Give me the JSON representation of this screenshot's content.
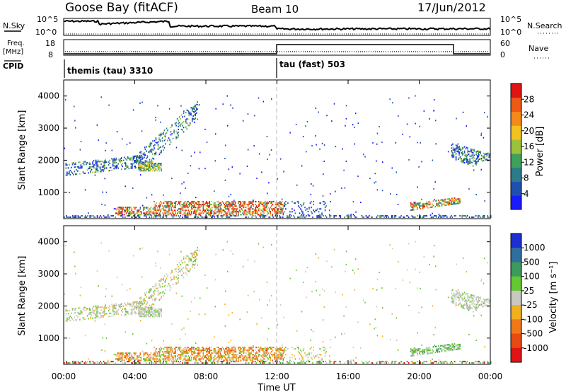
{
  "header": {
    "station": "Goose Bay (fitACF)",
    "beam": "Beam 10",
    "date": "17/Jun/2012"
  },
  "noise_panel": {
    "left_label": "N.Sky",
    "right_label": "N.Search",
    "left_ticks": [
      "10^5",
      "10^0"
    ],
    "right_ticks": [
      "10^5",
      "10^0"
    ]
  },
  "freq_panel": {
    "left_label_top": "Freq.",
    "left_label_bottom": "[MHz]",
    "right_label": "Nave",
    "left_ticks": [
      "18",
      "8"
    ],
    "right_ticks": [
      "60",
      "0"
    ]
  },
  "cpid": {
    "label": "CPID",
    "segments": [
      {
        "start_hour": 0,
        "text": "themis (tau) 3310"
      },
      {
        "start_hour": 12,
        "text": "tau (fast) 503"
      }
    ]
  },
  "time_axis": {
    "title": "Time UT",
    "ticks": [
      "00:00",
      "04:00",
      "08:00",
      "12:00",
      "16:00",
      "20:00",
      "00:00"
    ]
  },
  "chart_data": [
    {
      "type": "heatmap",
      "name": "power",
      "ylabel": "Slant Range [km]",
      "ylim": [
        180,
        4500
      ],
      "yticks": [
        "1000",
        "2000",
        "3000",
        "4000"
      ],
      "xlim_hours": [
        0,
        24
      ],
      "colorbar": {
        "label": "Power [dB]",
        "ticks": [
          "4",
          "8",
          "12",
          "16",
          "20",
          "24",
          "28"
        ],
        "colors": [
          "#1a1aff",
          "#1f50b0",
          "#2c7a8a",
          "#3fa05a",
          "#9cc23c",
          "#f2c21e",
          "#f58a1a",
          "#ee5a14",
          "#e01414"
        ]
      },
      "regions": [
        {
          "t": [
            0.2,
            6.3
          ],
          "r": [
            200,
            4300
          ],
          "note": "scatter"
        }
      ]
    },
    {
      "type": "heatmap",
      "name": "velocity",
      "ylabel": "Slant Range [km]",
      "ylim": [
        180,
        4500
      ],
      "yticks": [
        "1000",
        "2000",
        "3000",
        "4000"
      ],
      "xlim_hours": [
        0,
        24
      ],
      "colorbar": {
        "label": "Velocity [m s⁻¹]",
        "ticks": [
          "1000",
          "500",
          "100",
          "25",
          "-25",
          "-100",
          "-500",
          "-1000"
        ],
        "colors": [
          "#1c2fd0",
          "#2e6f9e",
          "#3c9a5c",
          "#64c832",
          "#c8c8c0",
          "#f0b020",
          "#f07818",
          "#e84a12",
          "#e01414"
        ]
      }
    }
  ]
}
